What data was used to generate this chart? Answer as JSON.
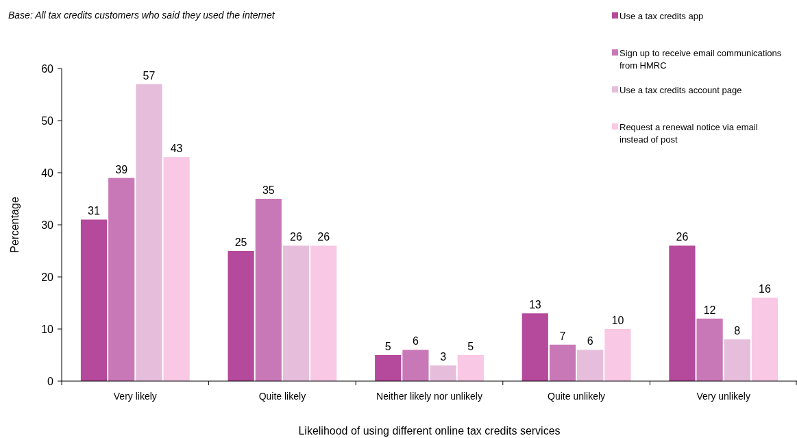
{
  "chart_data": {
    "type": "bar",
    "subtitle": "Base: All tax credits customers who said they used the internet",
    "xlabel": "Likelihood of using different online tax credits services",
    "ylabel": "Percentage",
    "categories": [
      "Very likely",
      "Quite likely",
      "Neither likely nor unlikely",
      "Quite unlikely",
      "Very unlikely"
    ],
    "series": [
      {
        "name": "Use a tax credits app",
        "color": "#b5499b",
        "values": [
          31,
          25,
          5,
          13,
          26
        ]
      },
      {
        "name": "Sign up to receive email communications from HMRC",
        "color": "#c978b7",
        "values": [
          39,
          35,
          6,
          7,
          12
        ]
      },
      {
        "name": "Use a tax credits account page",
        "color": "#e6bedc",
        "values": [
          57,
          26,
          3,
          6,
          8
        ]
      },
      {
        "name": "Request a renewal notice via email instead of post",
        "color": "#f8c8e4",
        "values": [
          43,
          26,
          5,
          10,
          16
        ]
      }
    ],
    "ylim": [
      0,
      60
    ],
    "yticks": [
      0,
      10,
      20,
      30,
      40,
      50,
      60
    ],
    "grid": false,
    "legend": "top right",
    "data_labels": true
  }
}
